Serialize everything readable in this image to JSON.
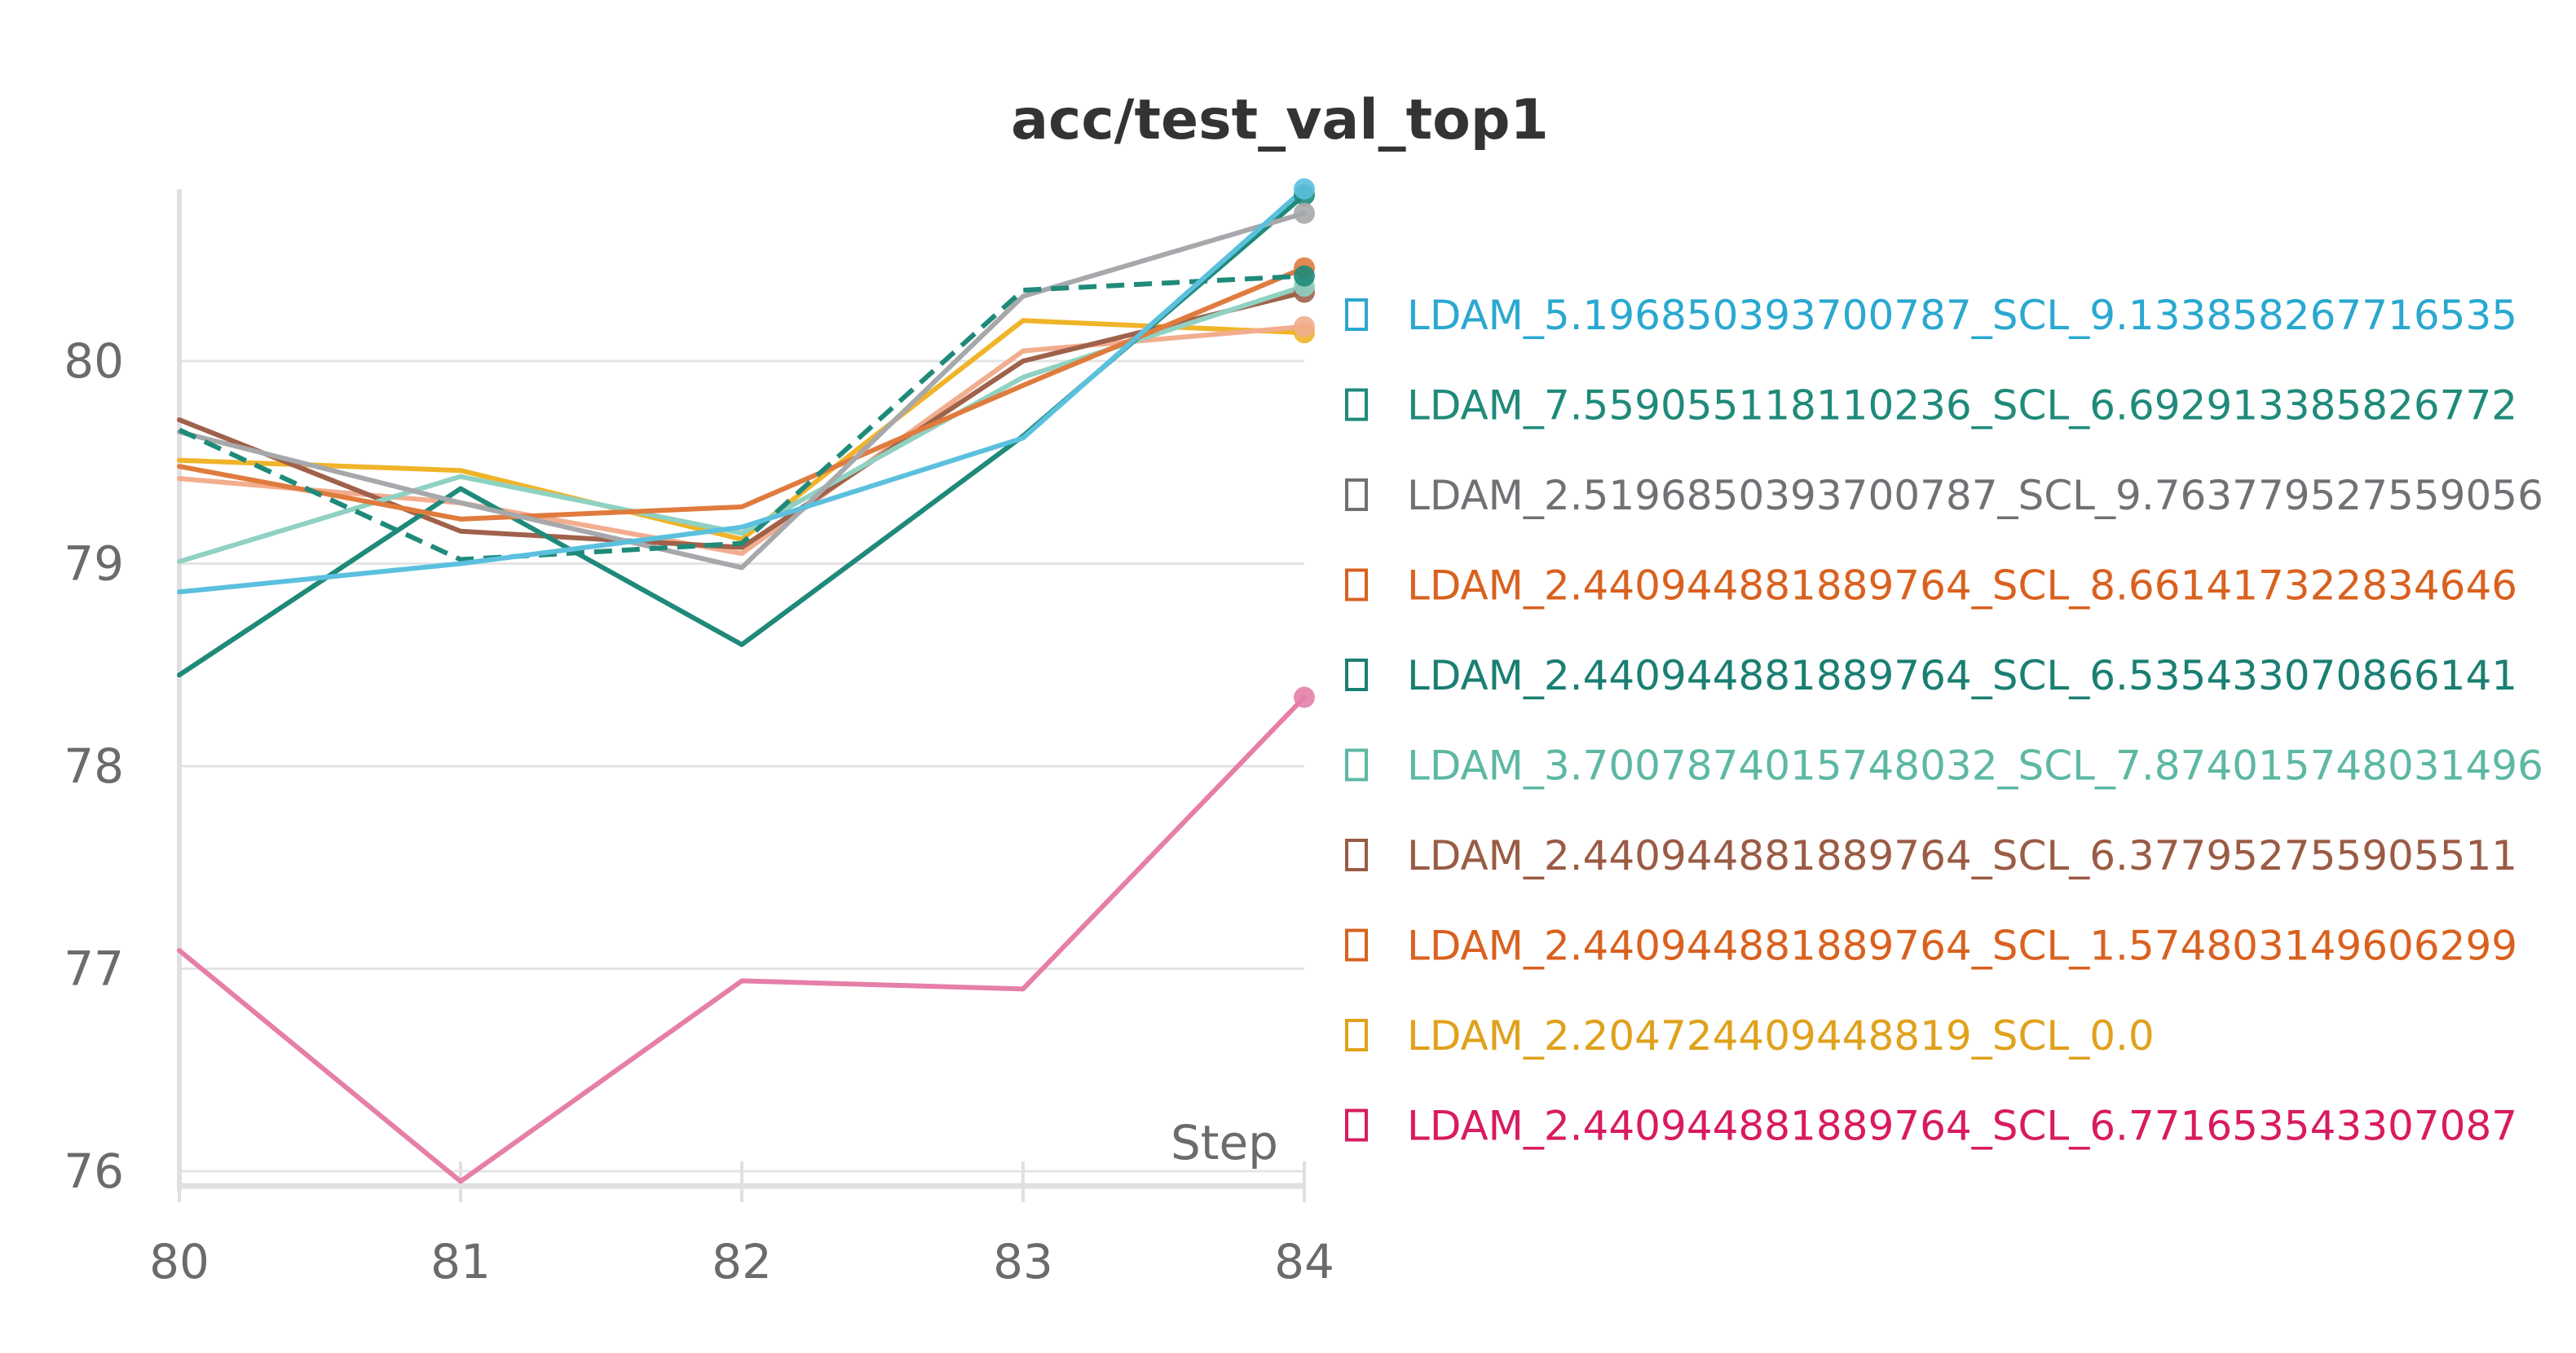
{
  "chart_data": {
    "type": "line",
    "title": "acc/test_val_top1",
    "xlabel": "Step",
    "ylabel": "",
    "xlim": [
      80,
      84
    ],
    "ylim": [
      75.95,
      80.95
    ],
    "x_ticks": [
      "80",
      "81",
      "82",
      "83",
      "84"
    ],
    "y_ticks": [
      "76",
      "77",
      "78",
      "79",
      "80"
    ],
    "x": [
      80,
      81,
      82,
      83,
      84
    ],
    "grid": true,
    "legend_position": "right",
    "series": [
      {
        "name": "LDAM_5.196850393700787_SCL_9.133858267716535",
        "color": "#5bc0de",
        "legend_color": "#2aa8d0",
        "dashed": false,
        "values": [
          78.86,
          79.0,
          79.18,
          79.62,
          80.85
        ]
      },
      {
        "name": "LDAM_7.559055118110236_SCL_6.692913385826772",
        "color": "#1f8a7a",
        "legend_color": "#1f8a7a",
        "dashed": true,
        "values": [
          79.66,
          79.02,
          79.1,
          80.35,
          80.42
        ]
      },
      {
        "name": "LDAM_2.5196850393700787_SCL_9.763779527559056",
        "color": "#a6a8ab",
        "legend_color": "#6f7175",
        "dashed": false,
        "values": [
          79.65,
          79.3,
          78.98,
          80.32,
          80.73
        ]
      },
      {
        "name": "LDAM_2.440944881889764_SCL_8.661417322834646",
        "color": "#e07b3e",
        "legend_color": "#d9611f",
        "dashed": false,
        "values": [
          79.48,
          79.22,
          79.28,
          79.88,
          80.46
        ]
      },
      {
        "name": "LDAM_2.440944881889764_SCL_6.535433070866141",
        "color": "#1f8a7a",
        "legend_color": "#1a7f72",
        "dashed": false,
        "values": [
          78.45,
          79.37,
          78.6,
          79.63,
          80.82
        ]
      },
      {
        "name": "LDAM_3.7007874015748032_SCL_7.874015748031496",
        "color": "#8fd1c2",
        "legend_color": "#5db8a3",
        "dashed": false,
        "values": [
          79.01,
          79.43,
          79.15,
          79.92,
          80.37
        ]
      },
      {
        "name": "LDAM_2.440944881889764_SCL_6.377952755905511",
        "color": "#a0614a",
        "legend_color": "#9a5b44",
        "dashed": false,
        "values": [
          79.71,
          79.16,
          79.08,
          80.0,
          80.34
        ]
      },
      {
        "name": "LDAM_2.440944881889764_SCL_1.574803149606299",
        "color": "#f2ad8f",
        "legend_color": "#d9611f",
        "dashed": false,
        "values": [
          79.42,
          79.3,
          79.05,
          80.05,
          80.17
        ]
      },
      {
        "name": "LDAM_2.204724409448819_SCL_0.0",
        "color": "#f0b429",
        "legend_color": "#e0a11b",
        "dashed": false,
        "values": [
          79.51,
          79.46,
          79.12,
          80.2,
          80.14
        ]
      },
      {
        "name": "LDAM_2.440944881889764_SCL_6.771653543307087",
        "color": "#e67fa8",
        "legend_color": "#d81b60",
        "dashed": false,
        "values": [
          77.09,
          75.95,
          76.94,
          76.9,
          78.34
        ]
      }
    ]
  }
}
